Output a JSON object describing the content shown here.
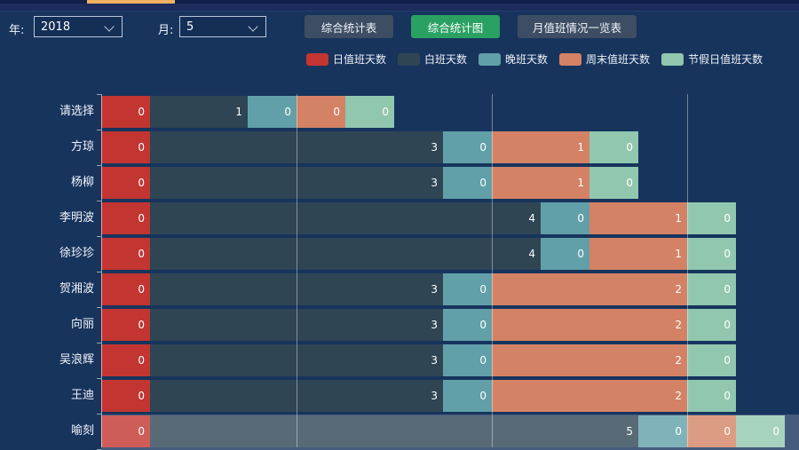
{
  "topbar": {
    "active_tab_indicator": "active-tab",
    "year_label": "年:",
    "year_value": "2018",
    "month_label": "月:",
    "month_value": "5",
    "btn_summary_table": "综合统计表",
    "btn_summary_chart": "综合统计图",
    "btn_monthly_overview": "月值班情况一览表"
  },
  "colors": {
    "background": "#17345d",
    "top_tab_accent": "#f0b164",
    "button": "#3d4d63",
    "button_active": "#2aa162",
    "gridline": "rgba(255,255,255,0.4)"
  },
  "chart_data": {
    "type": "bar",
    "orientation": "horizontal",
    "stacked": true,
    "title": "",
    "xlabel": "",
    "ylabel": "",
    "legend_position": "top",
    "grid": true,
    "gridline_values": [
      2,
      4,
      6
    ],
    "xlim": [
      0,
      7.15
    ],
    "value_labels": "inside-right",
    "min_segment_units": 0.5,
    "categories": [
      "请选择",
      "方琼",
      "杨柳",
      "李明波",
      "徐珍珍",
      "贺湘波",
      "向丽",
      "吴浪辉",
      "王迪",
      "喻刻"
    ],
    "series": [
      {
        "name": "日值班天数",
        "color": "#c23531",
        "values": [
          0,
          0,
          0,
          0,
          0,
          0,
          0,
          0,
          0,
          0
        ]
      },
      {
        "name": "白班天数",
        "color": "#2f4554",
        "values": [
          1,
          3,
          3,
          4,
          4,
          3,
          3,
          3,
          3,
          5
        ]
      },
      {
        "name": "晚班天数",
        "color": "#61a0a8",
        "values": [
          0,
          0,
          0,
          0,
          0,
          0,
          0,
          0,
          0,
          0
        ]
      },
      {
        "name": "周末值班天数",
        "color": "#d48265",
        "values": [
          0,
          1,
          1,
          1,
          1,
          2,
          2,
          2,
          2,
          0
        ]
      },
      {
        "name": "节假日值班天数",
        "color": "#91c7ae",
        "values": [
          0,
          0,
          0,
          0,
          0,
          0,
          0,
          0,
          0,
          0
        ]
      }
    ],
    "highlighted_category": "喻刻"
  }
}
